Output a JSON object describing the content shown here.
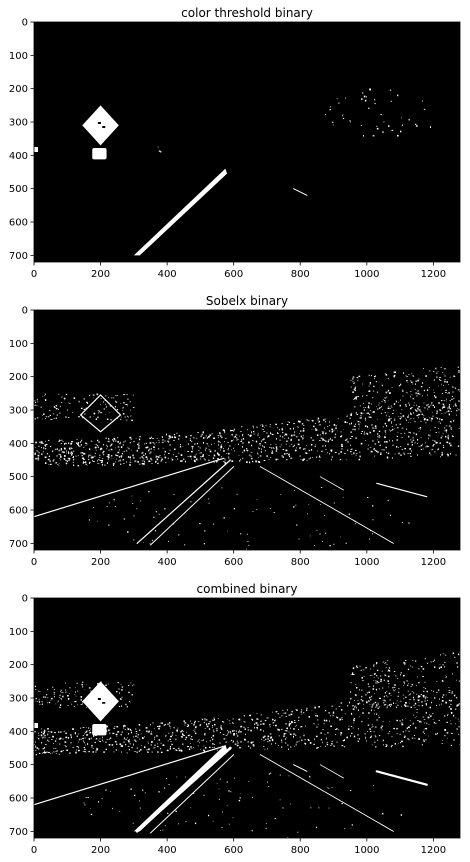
{
  "figure": {
    "panels": [
      {
        "title": "color threshold binary",
        "x_ticks": [
          "0",
          "200",
          "400",
          "600",
          "800",
          "1000",
          "1200"
        ],
        "y_ticks": [
          "0",
          "100",
          "200",
          "300",
          "400",
          "500",
          "600",
          "700"
        ],
        "xlim": [
          0,
          1280
        ],
        "ylim": [
          720,
          0
        ]
      },
      {
        "title": "Sobelx binary",
        "x_ticks": [
          "0",
          "200",
          "400",
          "600",
          "800",
          "1000",
          "1200"
        ],
        "y_ticks": [
          "0",
          "100",
          "200",
          "300",
          "400",
          "500",
          "600",
          "700"
        ],
        "xlim": [
          0,
          1280
        ],
        "ylim": [
          720,
          0
        ]
      },
      {
        "title": "combined binary",
        "x_ticks": [
          "0",
          "200",
          "400",
          "600",
          "800",
          "1000",
          "1200"
        ],
        "y_ticks": [
          "0",
          "100",
          "200",
          "300",
          "400",
          "500",
          "600",
          "700"
        ],
        "xlim": [
          0,
          1280
        ],
        "ylim": [
          720,
          0
        ]
      }
    ],
    "colors": {
      "background": "#000000",
      "foreground": "#ffffff"
    }
  }
}
